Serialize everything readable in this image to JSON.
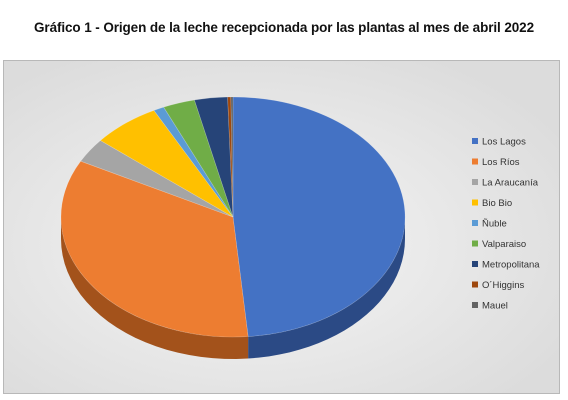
{
  "chart_data": {
    "type": "pie",
    "title": "Gráfico 1 - Origen de la leche recepcionada por las plantas al mes de abril 2022",
    "legend_position": "right",
    "categories": [
      "Los Lagos",
      "Los Ríos",
      "La Araucanía",
      "Bio Bio",
      "Ñuble",
      "Valparaiso",
      "Metropolitana",
      "O´Higgins",
      "Mauel"
    ],
    "values": [
      48.6,
      34.1,
      3.3,
      6.4,
      1.0,
      3.0,
      3.1,
      0.3,
      0.2
    ],
    "colors": [
      "#4472c4",
      "#ed7d31",
      "#a5a5a5",
      "#ffc000",
      "#5b9bd5",
      "#70ad47",
      "#264478",
      "#9e480e",
      "#636363"
    ],
    "side_colors": [
      "#2b4a85",
      "#a3521b",
      "#6e6e6e",
      "#b38600",
      "#3b6e9c",
      "#4b7a2e",
      "#15274a",
      "#6a2d07",
      "#3e3e3e"
    ]
  }
}
